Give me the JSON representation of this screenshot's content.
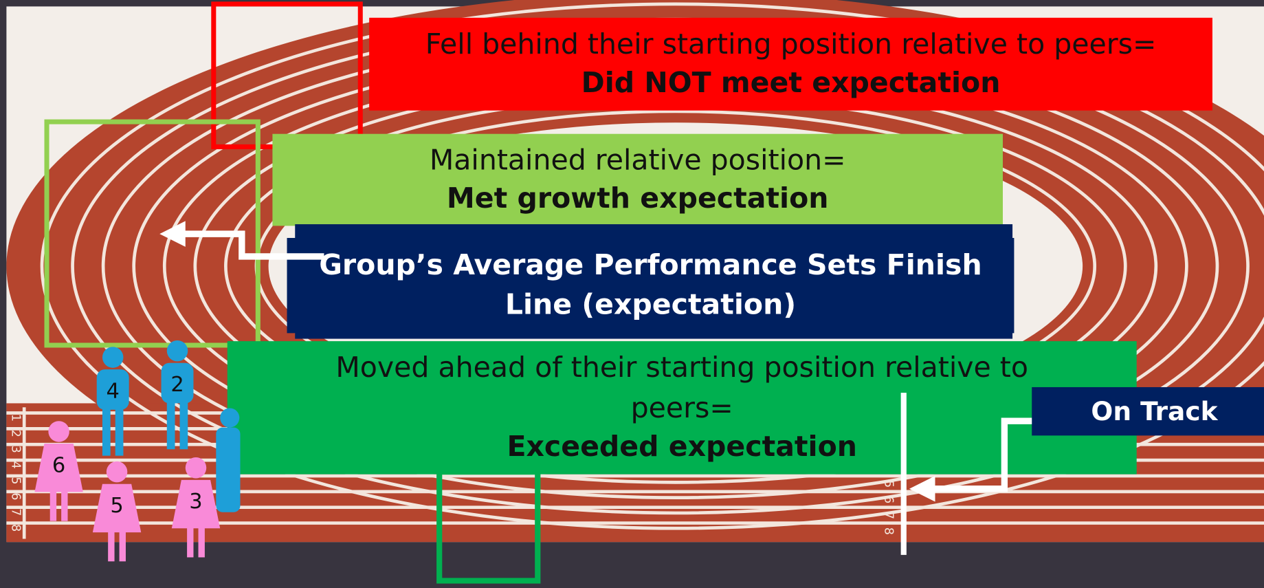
{
  "boxes": {
    "behind": {
      "line1": "Fell behind their starting position relative to peers=",
      "line2": "Did NOT meet expectation"
    },
    "maintained": {
      "line1": "Maintained relative position=",
      "line2": "Met growth expectation"
    },
    "finish": {
      "line1": "Group’s Average Performance Sets Finish",
      "line2": "Line (expectation)"
    },
    "ahead": {
      "line1": "Moved ahead of their starting position relative to",
      "line2": "peers=",
      "line3": "Exceeded expectation"
    },
    "on_track": "On Track"
  },
  "lanes": {
    "left": [
      "1",
      "2",
      "3",
      "4",
      "5",
      "6",
      "7",
      "8"
    ],
    "right": [
      "5",
      "6",
      "7",
      "8"
    ]
  },
  "runners": [
    "4",
    "2",
    "6",
    "5",
    "3"
  ]
}
